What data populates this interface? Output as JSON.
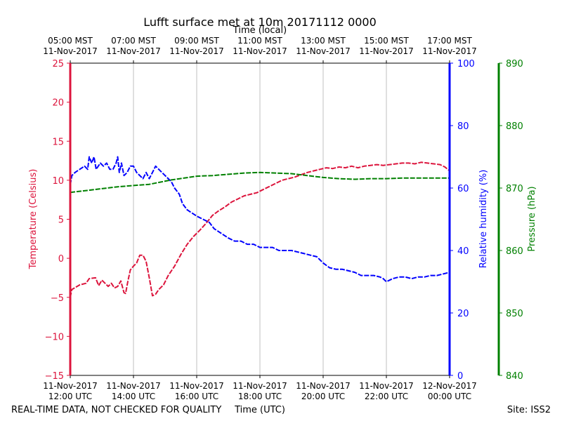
{
  "chart_data": {
    "type": "line",
    "title": "Lufft surface met at 10m 20171112 0000",
    "top_axis_label": "Time (local)",
    "xlabel": "Time (UTC)",
    "x_unit": "hours since 2017-11-11 12:00 UTC",
    "xlim": [
      0,
      12
    ],
    "bottom_ticks": [
      {
        "x": 0,
        "line1": "11-Nov-2017",
        "line2": "12:00 UTC"
      },
      {
        "x": 2,
        "line1": "11-Nov-2017",
        "line2": "14:00 UTC"
      },
      {
        "x": 4,
        "line1": "11-Nov-2017",
        "line2": "16:00 UTC"
      },
      {
        "x": 6,
        "line1": "11-Nov-2017",
        "line2": "18:00 UTC"
      },
      {
        "x": 8,
        "line1": "11-Nov-2017",
        "line2": "20:00 UTC"
      },
      {
        "x": 10,
        "line1": "11-Nov-2017",
        "line2": "22:00 UTC"
      },
      {
        "x": 12,
        "line1": "12-Nov-2017",
        "line2": "00:00 UTC"
      }
    ],
    "top_ticks": [
      {
        "x": 0,
        "line1": "05:00 MST",
        "line2": "11-Nov-2017"
      },
      {
        "x": 2,
        "line1": "07:00 MST",
        "line2": "11-Nov-2017"
      },
      {
        "x": 4,
        "line1": "09:00 MST",
        "line2": "11-Nov-2017"
      },
      {
        "x": 6,
        "line1": "11:00 MST",
        "line2": "11-Nov-2017"
      },
      {
        "x": 8,
        "line1": "13:00 MST",
        "line2": "11-Nov-2017"
      },
      {
        "x": 10,
        "line1": "15:00 MST",
        "line2": "11-Nov-2017"
      },
      {
        "x": 12,
        "line1": "17:00 MST",
        "line2": "11-Nov-2017"
      }
    ],
    "axes": {
      "temperature": {
        "label": "Temperature (Celsius)",
        "color": "#dc143c",
        "ylim": [
          -15,
          25
        ],
        "ticks": [
          -15,
          -10,
          -5,
          0,
          5,
          10,
          15,
          20,
          25
        ],
        "tick_labels": [
          "−15",
          "−10",
          "−5",
          "0",
          "5",
          "10",
          "15",
          "20",
          "25"
        ]
      },
      "humidity": {
        "label": "Relative humidity (%)",
        "color": "#0000ff",
        "ylim": [
          0,
          100
        ],
        "ticks": [
          0,
          20,
          40,
          60,
          80,
          100
        ],
        "tick_labels": [
          "0",
          "20",
          "40",
          "60",
          "80",
          "100"
        ]
      },
      "pressure": {
        "label": "Pressure (hPa)",
        "color": "#008000",
        "ylim": [
          840,
          890
        ],
        "ticks": [
          840,
          850,
          860,
          870,
          880,
          890
        ],
        "tick_labels": [
          "840",
          "850",
          "860",
          "870",
          "880",
          "890"
        ]
      }
    },
    "series": [
      {
        "name": "Temperature",
        "axis": "temperature",
        "color": "#dc143c",
        "dashed": true,
        "points": [
          [
            0,
            -5
          ],
          [
            0.05,
            -4
          ],
          [
            0.3,
            -3.4
          ],
          [
            0.5,
            -3.2
          ],
          [
            0.6,
            -2.6
          ],
          [
            0.8,
            -2.5
          ],
          [
            0.9,
            -3.5
          ],
          [
            1.0,
            -2.8
          ],
          [
            1.1,
            -3.2
          ],
          [
            1.2,
            -3.6
          ],
          [
            1.3,
            -3.2
          ],
          [
            1.4,
            -3.8
          ],
          [
            1.5,
            -3.6
          ],
          [
            1.6,
            -2.9
          ],
          [
            1.7,
            -4.4
          ],
          [
            1.75,
            -4.5
          ],
          [
            1.82,
            -3.0
          ],
          [
            1.9,
            -1.5
          ],
          [
            2.0,
            -1.0
          ],
          [
            2.1,
            -0.6
          ],
          [
            2.2,
            0.4
          ],
          [
            2.3,
            0.4
          ],
          [
            2.4,
            -0.4
          ],
          [
            2.5,
            -2.5
          ],
          [
            2.6,
            -4.8
          ],
          [
            2.7,
            -4.6
          ],
          [
            2.8,
            -4.0
          ],
          [
            2.95,
            -3.4
          ],
          [
            3.1,
            -2.2
          ],
          [
            3.3,
            -1.0
          ],
          [
            3.5,
            0.5
          ],
          [
            3.7,
            1.8
          ],
          [
            3.9,
            2.8
          ],
          [
            4.1,
            3.6
          ],
          [
            4.3,
            4.5
          ],
          [
            4.5,
            5.5
          ],
          [
            4.7,
            6.1
          ],
          [
            4.9,
            6.6
          ],
          [
            5.1,
            7.2
          ],
          [
            5.3,
            7.6
          ],
          [
            5.5,
            8.0
          ],
          [
            5.7,
            8.2
          ],
          [
            5.9,
            8.4
          ],
          [
            6.1,
            8.8
          ],
          [
            6.3,
            9.2
          ],
          [
            6.5,
            9.6
          ],
          [
            6.7,
            10.0
          ],
          [
            6.9,
            10.2
          ],
          [
            7.1,
            10.4
          ],
          [
            7.3,
            10.7
          ],
          [
            7.5,
            11.0
          ],
          [
            7.7,
            11.2
          ],
          [
            7.9,
            11.4
          ],
          [
            8.1,
            11.6
          ],
          [
            8.3,
            11.5
          ],
          [
            8.5,
            11.7
          ],
          [
            8.7,
            11.6
          ],
          [
            8.9,
            11.8
          ],
          [
            9.1,
            11.6
          ],
          [
            9.3,
            11.8
          ],
          [
            9.5,
            11.9
          ],
          [
            9.7,
            12.0
          ],
          [
            9.9,
            11.9
          ],
          [
            10.1,
            12.0
          ],
          [
            10.3,
            12.1
          ],
          [
            10.5,
            12.2
          ],
          [
            10.7,
            12.2
          ],
          [
            10.9,
            12.1
          ],
          [
            11.1,
            12.3
          ],
          [
            11.3,
            12.2
          ],
          [
            11.5,
            12.1
          ],
          [
            11.7,
            12.0
          ],
          [
            11.85,
            11.7
          ],
          [
            12.0,
            11.2
          ]
        ]
      },
      {
        "name": "Relative humidity",
        "axis": "humidity",
        "color": "#0000ff",
        "dashed": true,
        "points": [
          [
            0,
            61
          ],
          [
            0.05,
            64
          ],
          [
            0.15,
            65
          ],
          [
            0.3,
            66
          ],
          [
            0.45,
            67
          ],
          [
            0.55,
            66
          ],
          [
            0.6,
            70
          ],
          [
            0.68,
            68
          ],
          [
            0.75,
            70
          ],
          [
            0.82,
            66
          ],
          [
            0.95,
            68
          ],
          [
            1.05,
            67
          ],
          [
            1.15,
            68
          ],
          [
            1.25,
            66
          ],
          [
            1.35,
            66
          ],
          [
            1.45,
            68
          ],
          [
            1.5,
            70
          ],
          [
            1.55,
            65
          ],
          [
            1.62,
            68
          ],
          [
            1.7,
            64
          ],
          [
            1.8,
            65
          ],
          [
            1.9,
            67
          ],
          [
            2.0,
            67
          ],
          [
            2.1,
            65
          ],
          [
            2.2,
            64
          ],
          [
            2.3,
            63
          ],
          [
            2.4,
            65
          ],
          [
            2.5,
            63
          ],
          [
            2.6,
            65
          ],
          [
            2.7,
            67
          ],
          [
            2.8,
            66
          ],
          [
            2.9,
            65
          ],
          [
            3.0,
            64
          ],
          [
            3.1,
            63
          ],
          [
            3.2,
            62
          ],
          [
            3.3,
            60
          ],
          [
            3.45,
            58
          ],
          [
            3.55,
            55
          ],
          [
            3.7,
            53
          ],
          [
            3.85,
            52
          ],
          [
            4.0,
            51
          ],
          [
            4.2,
            50
          ],
          [
            4.4,
            49
          ],
          [
            4.55,
            47
          ],
          [
            4.7,
            46
          ],
          [
            4.85,
            45
          ],
          [
            5.0,
            44
          ],
          [
            5.2,
            43
          ],
          [
            5.4,
            43
          ],
          [
            5.6,
            42
          ],
          [
            5.8,
            42
          ],
          [
            6.0,
            41
          ],
          [
            6.2,
            41
          ],
          [
            6.4,
            41
          ],
          [
            6.6,
            40
          ],
          [
            6.8,
            40
          ],
          [
            7.0,
            40
          ],
          [
            7.2,
            39.5
          ],
          [
            7.4,
            39
          ],
          [
            7.6,
            38.5
          ],
          [
            7.8,
            38
          ],
          [
            8.0,
            36
          ],
          [
            8.2,
            34.5
          ],
          [
            8.4,
            34
          ],
          [
            8.6,
            34
          ],
          [
            8.8,
            33.5
          ],
          [
            9.0,
            33
          ],
          [
            9.2,
            32
          ],
          [
            9.4,
            32
          ],
          [
            9.6,
            32
          ],
          [
            9.8,
            31.5
          ],
          [
            9.9,
            31
          ],
          [
            10.0,
            30
          ],
          [
            10.2,
            31
          ],
          [
            10.4,
            31.5
          ],
          [
            10.6,
            31.5
          ],
          [
            10.8,
            31
          ],
          [
            11.0,
            31.5
          ],
          [
            11.2,
            31.5
          ],
          [
            11.4,
            32
          ],
          [
            11.6,
            32
          ],
          [
            11.8,
            32.5
          ],
          [
            12.0,
            33
          ]
        ]
      },
      {
        "name": "Pressure",
        "axis": "pressure",
        "color": "#008000",
        "dashed": true,
        "points": [
          [
            0,
            869.3
          ],
          [
            0.5,
            869.6
          ],
          [
            1.0,
            869.9
          ],
          [
            1.5,
            870.2
          ],
          [
            2.0,
            870.4
          ],
          [
            2.5,
            870.6
          ],
          [
            2.8,
            870.9
          ],
          [
            3.2,
            871.3
          ],
          [
            3.6,
            871.6
          ],
          [
            4.0,
            871.9
          ],
          [
            4.5,
            872.0
          ],
          [
            5.0,
            872.2
          ],
          [
            5.5,
            872.4
          ],
          [
            6.0,
            872.5
          ],
          [
            6.5,
            872.4
          ],
          [
            7.0,
            872.3
          ],
          [
            7.5,
            872.0
          ],
          [
            8.0,
            871.7
          ],
          [
            8.5,
            871.5
          ],
          [
            9.0,
            871.4
          ],
          [
            9.5,
            871.5
          ],
          [
            10.0,
            871.5
          ],
          [
            10.5,
            871.6
          ],
          [
            11.0,
            871.6
          ],
          [
            11.5,
            871.6
          ],
          [
            12.0,
            871.6
          ]
        ]
      }
    ],
    "grid": "vertical-only"
  },
  "footer": {
    "disclaimer": "REAL-TIME DATA, NOT CHECKED FOR QUALITY",
    "site": "Site: ISS2"
  }
}
